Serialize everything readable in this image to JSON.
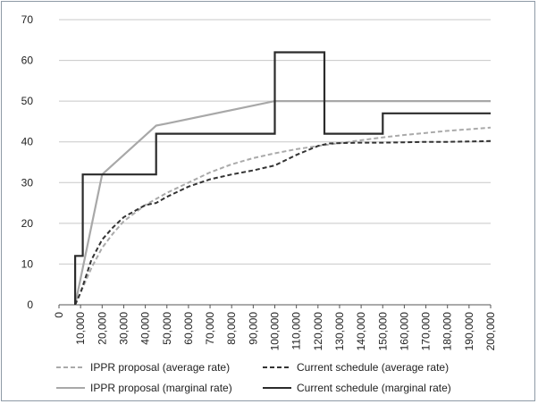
{
  "chart_data": {
    "type": "line",
    "title": "",
    "xlabel": "",
    "ylabel": "",
    "xlim": [
      0,
      200000
    ],
    "ylim": [
      0,
      70
    ],
    "grid": "horizontal",
    "legend_position": "bottom",
    "y_ticks": [
      "0",
      "10",
      "20",
      "30",
      "40",
      "50",
      "60",
      "70"
    ],
    "x_ticks": [
      "0",
      "10,000",
      "20,000",
      "30,000",
      "40,000",
      "50,000",
      "60,000",
      "70,000",
      "80,000",
      "90,000",
      "100,000",
      "110,000",
      "120,000",
      "130,000",
      "140,000",
      "150,000",
      "160,000",
      "170,000",
      "180,000",
      "190,000",
      "200,000"
    ],
    "series": [
      {
        "name": "IPPR proposal (average rate)",
        "color": "#aaaaaa",
        "dash": "dashed",
        "x": [
          7500,
          10000,
          15000,
          20000,
          25000,
          30000,
          40000,
          50000,
          60000,
          70000,
          80000,
          90000,
          100000,
          110000,
          120000,
          130000,
          140000,
          150000,
          160000,
          170000,
          180000,
          190000,
          200000
        ],
        "y": [
          0,
          3,
          9,
          14,
          17.5,
          20.5,
          24.5,
          27.5,
          30,
          32.5,
          34.5,
          36,
          37.2,
          38.2,
          39,
          39.7,
          40.4,
          41.1,
          41.7,
          42.2,
          42.7,
          43.1,
          43.5
        ]
      },
      {
        "name": "Current schedule (average rate)",
        "color": "#333333",
        "dash": "dashed",
        "x": [
          7500,
          10000,
          12500,
          15000,
          20000,
          25000,
          30000,
          40000,
          45000,
          50000,
          60000,
          70000,
          80000,
          90000,
          100000,
          110000,
          120000,
          125000,
          130000,
          140000,
          150000,
          160000,
          170000,
          180000,
          190000,
          200000
        ],
        "y": [
          0,
          3,
          7,
          11,
          16,
          19,
          21.5,
          24.5,
          25,
          26.5,
          29,
          30.8,
          32,
          33,
          34.2,
          36.8,
          39,
          39.6,
          39.7,
          39.8,
          39.8,
          39.9,
          40,
          40,
          40.1,
          40.2
        ]
      },
      {
        "name": "IPPR proposal (marginal rate)",
        "color": "#a8a8a8",
        "dash": "solid",
        "x": [
          7500,
          20000,
          45000,
          50000,
          100000,
          200000
        ],
        "y": [
          0,
          32,
          44,
          44.5,
          50,
          50
        ]
      },
      {
        "name": "Current schedule (marginal rate)",
        "color": "#2b2b2b",
        "dash": "solid",
        "x": [
          7500,
          7500,
          11000,
          11000,
          45000,
          45000,
          100000,
          100000,
          123000,
          123000,
          150000,
          150000,
          200000
        ],
        "y": [
          0,
          12,
          12,
          32,
          32,
          42,
          42,
          62,
          62,
          42,
          42,
          47,
          47
        ]
      }
    ]
  }
}
